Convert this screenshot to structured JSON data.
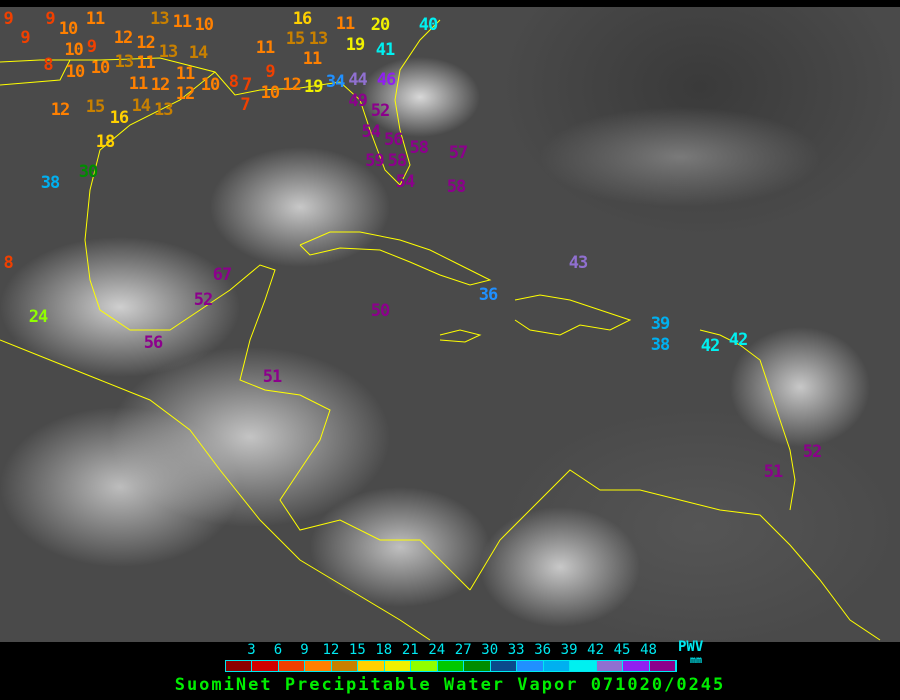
{
  "title": "SuomiNet Precipitable Water Vapor 071020/0245",
  "legend": {
    "unit_label": "PWV",
    "unit": "mm",
    "ticks": [
      "3",
      "6",
      "9",
      "12",
      "15",
      "18",
      "21",
      "24",
      "27",
      "30",
      "33",
      "36",
      "39",
      "42",
      "45",
      "48"
    ],
    "colors": [
      "#8b0000",
      "#d00000",
      "#f04000",
      "#ff8000",
      "#c88000",
      "#ffd000",
      "#f0f000",
      "#90ff00",
      "#00c800",
      "#008c00",
      "#0a4a8c",
      "#2090ff",
      "#00b0f0",
      "#00f0f0",
      "#9070d0",
      "#9020f0",
      "#8c008c"
    ]
  },
  "coastline_color": "#ffff00",
  "stations": [
    "9",
    "9",
    "9",
    "10",
    "10",
    "11",
    "9",
    "8",
    "10",
    "10",
    "13",
    "11",
    "12",
    "12",
    "13",
    "11",
    "13",
    "10",
    "14",
    "11",
    "11",
    "12",
    "12",
    "10",
    "8",
    "7",
    "7",
    "9",
    "10",
    "12",
    "19",
    "34",
    "44",
    "46",
    "49",
    "11",
    "16",
    "15",
    "13",
    "11",
    "11",
    "19",
    "20",
    "40",
    "41",
    "12",
    "15",
    "16",
    "18",
    "13",
    "14",
    "30",
    "38",
    "52",
    "54",
    "56",
    "58",
    "59",
    "58",
    "54",
    "57",
    "58",
    "43",
    "36",
    "67",
    "52",
    "50",
    "56",
    "51",
    "24",
    "8",
    "39",
    "38",
    "42",
    "42",
    "51",
    "52"
  ]
}
